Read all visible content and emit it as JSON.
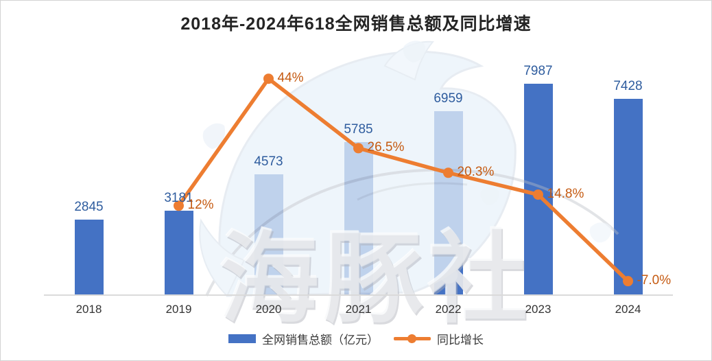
{
  "title": "2018年-2024年618全网销售总额及同比增速",
  "watermark_text": "海豚社",
  "colors": {
    "bar": "#4472C4",
    "line": "#ED7D31",
    "value_label": "#2E5C9E",
    "pct_label": "#C55A11",
    "axis_line": "#DADADA",
    "title": "#242424",
    "tick": "#333333"
  },
  "legend": {
    "sales_label": "全网销售总额（亿元）",
    "growth_label": "同比增长"
  },
  "chart_data": {
    "type": "combo-bar-line",
    "title": "2018年-2024年618全网销售总额及同比增速",
    "categories": [
      "2018",
      "2019",
      "2020",
      "2021",
      "2022",
      "2023",
      "2024"
    ],
    "series": [
      {
        "name": "全网销售总额（亿元）",
        "type": "bar",
        "values": [
          2845,
          3181,
          4573,
          5785,
          6959,
          7987,
          7428
        ],
        "labels": [
          "2845",
          "3181",
          "4573",
          "5785",
          "6959",
          "7987",
          "7428"
        ]
      },
      {
        "name": "同比增长",
        "type": "line",
        "unit": "%",
        "values": [
          null,
          12,
          44,
          26.5,
          20.3,
          14.8,
          -7.0
        ],
        "labels": [
          "",
          "12%",
          "44%",
          "26.5%",
          "20.3%",
          "14.8%",
          "-7.0%"
        ]
      }
    ],
    "value_axis_range": [
      0,
      9000
    ],
    "pct_axis_range": [
      -10,
      50
    ],
    "grid": false,
    "axis_labels_visible": false,
    "legend_position": "bottom"
  }
}
